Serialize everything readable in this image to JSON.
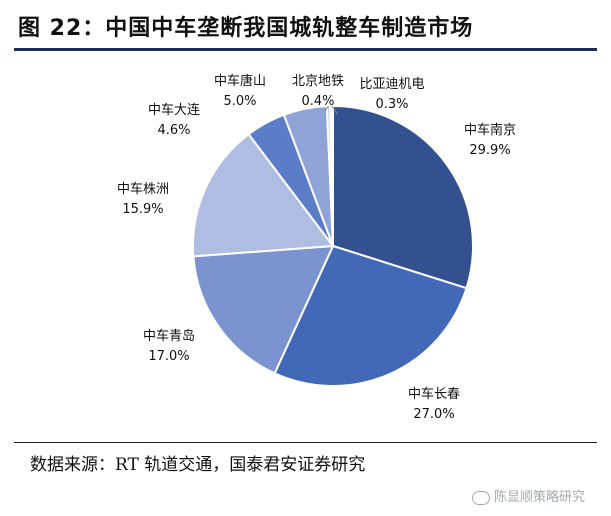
{
  "figure": {
    "title": "图 22：中国中车垄断我国城轨整车制造市场",
    "source": "数据来源：RT 轨道交通，国泰君安证券研究",
    "watermark": "陈显顺策略研究"
  },
  "chart_data": {
    "type": "pie",
    "title": "图 22：中国中车垄断我国城轨整车制造市场",
    "slices": [
      {
        "label": "中车南京",
        "value_label": "29.9%",
        "value": 29.9,
        "color": "#33508f"
      },
      {
        "label": "中车长春",
        "value_label": "27.0%",
        "value": 27.0,
        "color": "#4169b8"
      },
      {
        "label": "中车青岛",
        "value_label": "17.0%",
        "value": 17.0,
        "color": "#7b93cf"
      },
      {
        "label": "中车株洲",
        "value_label": "15.9%",
        "value": 15.9,
        "color": "#b0bde2"
      },
      {
        "label": "中车大连",
        "value_label": "4.6%",
        "value": 4.6,
        "color": "#5b7cc6"
      },
      {
        "label": "中车唐山",
        "value_label": "5.0%",
        "value": 5.0,
        "color": "#8fa3d6"
      },
      {
        "label": "北京地铁",
        "value_label": "0.4%",
        "value": 0.4,
        "color": "#c9d2ec"
      },
      {
        "label": "比亚迪机电",
        "value_label": "0.3%",
        "value": 0.3,
        "color": "#dfe5f4"
      }
    ]
  }
}
